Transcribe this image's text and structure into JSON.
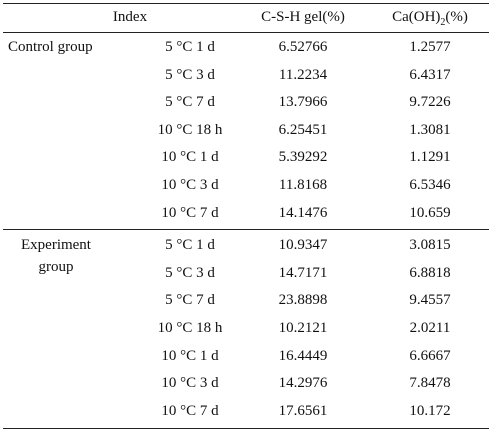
{
  "header": {
    "index": "Index",
    "csh": "C-S-H gel(%)",
    "caoh": {
      "main": "Ca(OH)",
      "sub": "2",
      "tail": "(%)"
    }
  },
  "groups": [
    {
      "name": "Control group",
      "rows": [
        [
          "5 °C 1 d",
          "6.52766",
          "1.2577"
        ],
        [
          "5 °C 3 d",
          "11.2234",
          "6.4317"
        ],
        [
          "5 °C 7 d",
          "13.7966",
          "9.7226"
        ],
        [
          "10 °C 18 h",
          "6.25451",
          "1.3081"
        ],
        [
          "10 °C 1 d",
          "5.39292",
          "1.1291"
        ],
        [
          "10 °C 3 d",
          "11.8168",
          "6.5346"
        ],
        [
          "10 °C 7 d",
          "14.1476",
          "10.659"
        ]
      ]
    },
    {
      "name": "Experiment group",
      "rows": [
        [
          "5 °C 1 d",
          "10.9347",
          "3.0815"
        ],
        [
          "5 °C 3 d",
          "14.7171",
          "6.8818"
        ],
        [
          "5 °C 7 d",
          "23.8898",
          "9.4557"
        ],
        [
          "10 °C 18 h",
          "10.2121",
          "2.0211"
        ],
        [
          "10 °C 1 d",
          "16.4449",
          "6.6667"
        ],
        [
          "10 °C 3 d",
          "14.2976",
          "7.8478"
        ],
        [
          "10 °C 7 d",
          "17.6561",
          "10.172"
        ]
      ]
    }
  ]
}
